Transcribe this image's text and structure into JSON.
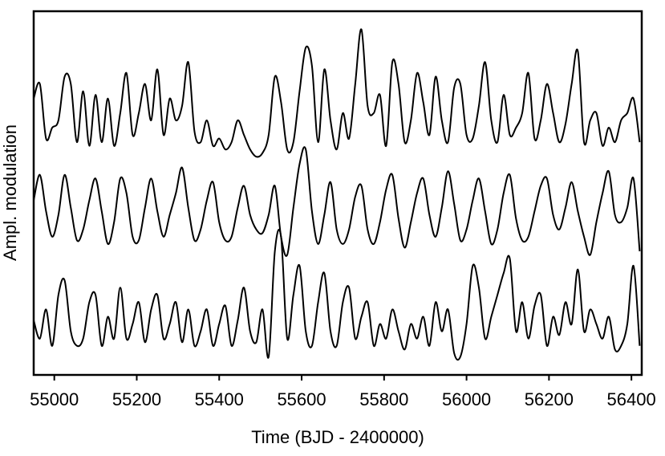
{
  "chart_data": {
    "type": "line",
    "xlabel": "Time (BJD - 2400000)",
    "ylabel": "Ampl. modulation",
    "xlim": [
      54950,
      56425
    ],
    "ylim": [
      0,
      1
    ],
    "xticks": [
      55000,
      55200,
      55400,
      55600,
      55800,
      56000,
      56200,
      56400
    ],
    "x": [
      54950,
      54965,
      54980,
      54995,
      55010,
      55025,
      55040,
      55055,
      55070,
      55085,
      55100,
      55115,
      55130,
      55145,
      55160,
      55175,
      55190,
      55205,
      55220,
      55235,
      55250,
      55265,
      55280,
      55295,
      55310,
      55325,
      55340,
      55355,
      55370,
      55385,
      55400,
      55415,
      55430,
      55445,
      55460,
      55475,
      55490,
      55505,
      55520,
      55535,
      55550,
      55565,
      55580,
      55595,
      55610,
      55625,
      55640,
      55655,
      55670,
      55685,
      55700,
      55715,
      55730,
      55745,
      55760,
      55775,
      55790,
      55805,
      55820,
      55835,
      55850,
      55865,
      55880,
      55895,
      55910,
      55925,
      55940,
      55955,
      55970,
      55985,
      56000,
      56015,
      56030,
      56045,
      56060,
      56075,
      56090,
      56105,
      56120,
      56135,
      56150,
      56165,
      56180,
      56195,
      56210,
      56225,
      56240,
      56255,
      56270,
      56285,
      56300,
      56315,
      56330,
      56345,
      56360,
      56375,
      56390,
      56405,
      56420
    ],
    "series": [
      {
        "color": "#000000",
        "values": [
          0.76,
          0.8,
          0.65,
          0.68,
          0.7,
          0.82,
          0.8,
          0.64,
          0.78,
          0.63,
          0.77,
          0.64,
          0.76,
          0.63,
          0.72,
          0.83,
          0.66,
          0.72,
          0.8,
          0.7,
          0.84,
          0.66,
          0.76,
          0.7,
          0.74,
          0.86,
          0.67,
          0.64,
          0.7,
          0.63,
          0.65,
          0.62,
          0.64,
          0.7,
          0.66,
          0.62,
          0.6,
          0.61,
          0.66,
          0.82,
          0.75,
          0.62,
          0.64,
          0.78,
          0.9,
          0.85,
          0.64,
          0.84,
          0.7,
          0.62,
          0.72,
          0.65,
          0.8,
          0.95,
          0.74,
          0.72,
          0.77,
          0.63,
          0.86,
          0.8,
          0.64,
          0.7,
          0.83,
          0.75,
          0.66,
          0.82,
          0.7,
          0.64,
          0.79,
          0.8,
          0.66,
          0.65,
          0.74,
          0.86,
          0.7,
          0.64,
          0.77,
          0.66,
          0.68,
          0.72,
          0.83,
          0.65,
          0.7,
          0.8,
          0.72,
          0.64,
          0.69,
          0.8,
          0.89,
          0.64,
          0.7,
          0.72,
          0.63,
          0.68,
          0.64,
          0.7,
          0.72,
          0.76,
          0.64
        ]
      },
      {
        "color": "#000000",
        "values": [
          0.48,
          0.55,
          0.45,
          0.38,
          0.44,
          0.55,
          0.46,
          0.37,
          0.4,
          0.48,
          0.54,
          0.45,
          0.36,
          0.42,
          0.54,
          0.5,
          0.38,
          0.37,
          0.46,
          0.54,
          0.45,
          0.38,
          0.44,
          0.5,
          0.57,
          0.46,
          0.37,
          0.4,
          0.48,
          0.53,
          0.42,
          0.37,
          0.38,
          0.46,
          0.52,
          0.44,
          0.4,
          0.39,
          0.44,
          0.52,
          0.38,
          0.33,
          0.46,
          0.58,
          0.62,
          0.45,
          0.36,
          0.44,
          0.53,
          0.4,
          0.36,
          0.4,
          0.49,
          0.52,
          0.4,
          0.36,
          0.42,
          0.51,
          0.55,
          0.43,
          0.35,
          0.42,
          0.5,
          0.54,
          0.44,
          0.38,
          0.46,
          0.56,
          0.47,
          0.37,
          0.4,
          0.48,
          0.54,
          0.45,
          0.36,
          0.4,
          0.5,
          0.55,
          0.43,
          0.37,
          0.38,
          0.45,
          0.52,
          0.54,
          0.44,
          0.4,
          0.46,
          0.53,
          0.45,
          0.38,
          0.33,
          0.42,
          0.5,
          0.56,
          0.44,
          0.42,
          0.46,
          0.54,
          0.34
        ]
      },
      {
        "color": "#000000",
        "values": [
          0.15,
          0.1,
          0.18,
          0.08,
          0.22,
          0.26,
          0.12,
          0.08,
          0.1,
          0.2,
          0.22,
          0.08,
          0.16,
          0.1,
          0.24,
          0.1,
          0.14,
          0.2,
          0.09,
          0.18,
          0.22,
          0.1,
          0.14,
          0.2,
          0.09,
          0.18,
          0.08,
          0.12,
          0.18,
          0.08,
          0.14,
          0.19,
          0.08,
          0.15,
          0.24,
          0.12,
          0.09,
          0.18,
          0.05,
          0.34,
          0.38,
          0.1,
          0.22,
          0.3,
          0.12,
          0.08,
          0.2,
          0.28,
          0.12,
          0.08,
          0.2,
          0.24,
          0.1,
          0.16,
          0.2,
          0.08,
          0.14,
          0.1,
          0.18,
          0.12,
          0.07,
          0.14,
          0.1,
          0.16,
          0.08,
          0.2,
          0.12,
          0.18,
          0.06,
          0.05,
          0.14,
          0.3,
          0.24,
          0.1,
          0.16,
          0.22,
          0.28,
          0.32,
          0.12,
          0.2,
          0.1,
          0.19,
          0.22,
          0.08,
          0.16,
          0.11,
          0.2,
          0.14,
          0.29,
          0.12,
          0.18,
          0.14,
          0.1,
          0.16,
          0.07,
          0.08,
          0.14,
          0.3,
          0.08
        ]
      }
    ]
  }
}
